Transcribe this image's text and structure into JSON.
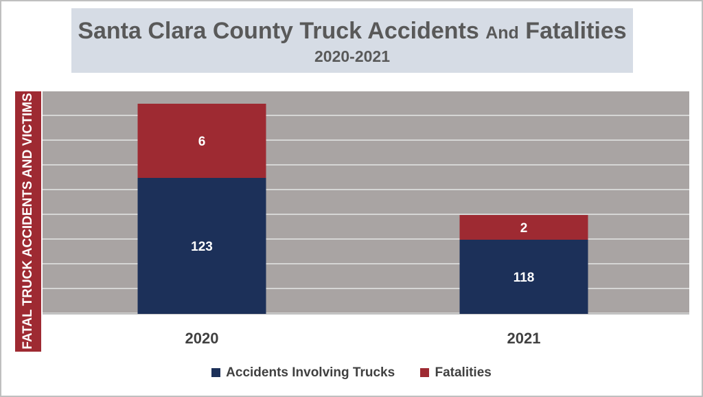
{
  "title": {
    "main": "Santa Clara County Truck Accidents",
    "main_small": "And",
    "main_end": "Fatalities",
    "subtitle": "2020-2021"
  },
  "chart_data": {
    "type": "bar",
    "stacked": true,
    "categories": [
      "2020",
      "2021"
    ],
    "series": [
      {
        "name": "Accidents Involving Trucks",
        "values": [
          123,
          118
        ],
        "color": "#1c3059"
      },
      {
        "name": "Fatalities",
        "values": [
          6,
          2
        ],
        "color": "#9e2a32"
      }
    ],
    "ylabel": "FATAL TRUCK ACCIDENTS AND VICTIMS",
    "xlabel": "",
    "grid": true,
    "legend": "bottom",
    "plot_background": "#a9a4a3",
    "gridline_color": "#e6e6e6"
  }
}
